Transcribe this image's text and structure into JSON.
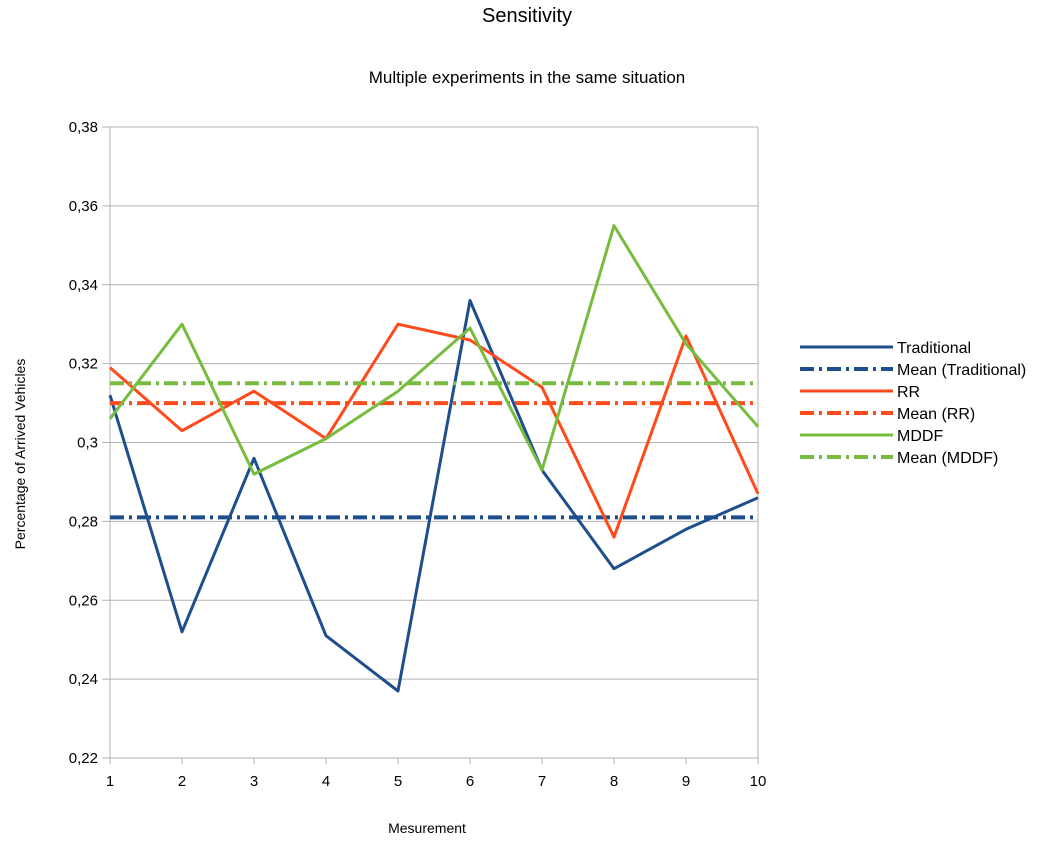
{
  "chart_data": {
    "type": "line",
    "title": "Sensitivity",
    "subtitle": "Multiple experiments in the same situation",
    "xlabel": "Mesurement",
    "ylabel": "Percentage of Arrived Vehicles",
    "x": [
      1,
      2,
      3,
      4,
      5,
      6,
      7,
      8,
      9,
      10
    ],
    "xlim": [
      1,
      10
    ],
    "ylim": [
      0.22,
      0.38
    ],
    "yticks": [
      0.22,
      0.24,
      0.26,
      0.28,
      0.3,
      0.32,
      0.34,
      0.36,
      0.38
    ],
    "ytick_labels": [
      "0,22",
      "0,24",
      "0,26",
      "0,28",
      "0,3",
      "0,32",
      "0,34",
      "0,36",
      "0,38"
    ],
    "xtick_labels": [
      "1",
      "2",
      "3",
      "4",
      "5",
      "6",
      "7",
      "8",
      "9",
      "10"
    ],
    "grid": "horizontal",
    "legend_position": "right",
    "series": [
      {
        "name": "Traditional",
        "color": "#1f4e8c",
        "style": "solid",
        "values": [
          0.312,
          0.252,
          0.296,
          0.251,
          0.237,
          0.336,
          0.293,
          0.268,
          0.278,
          0.286
        ]
      },
      {
        "name": "Mean (Traditional)",
        "color": "#1f4e8c",
        "style": "dashdot",
        "values": [
          0.281,
          0.281,
          0.281,
          0.281,
          0.281,
          0.281,
          0.281,
          0.281,
          0.281,
          0.281
        ]
      },
      {
        "name": "RR",
        "color": "#ff4a1c",
        "style": "solid",
        "values": [
          0.319,
          0.303,
          0.313,
          0.301,
          0.33,
          0.326,
          0.314,
          0.276,
          0.327,
          0.287
        ]
      },
      {
        "name": "Mean (RR)",
        "color": "#ff4a1c",
        "style": "dashdot",
        "values": [
          0.31,
          0.31,
          0.31,
          0.31,
          0.31,
          0.31,
          0.31,
          0.31,
          0.31,
          0.31
        ]
      },
      {
        "name": "MDDF",
        "color": "#77bc3f",
        "style": "solid",
        "values": [
          0.306,
          0.33,
          0.292,
          0.301,
          0.313,
          0.329,
          0.293,
          0.355,
          0.325,
          0.304
        ]
      },
      {
        "name": "Mean (MDDF)",
        "color": "#77bc3f",
        "style": "dashdot",
        "values": [
          0.315,
          0.315,
          0.315,
          0.315,
          0.315,
          0.315,
          0.315,
          0.315,
          0.315,
          0.315
        ]
      }
    ]
  }
}
